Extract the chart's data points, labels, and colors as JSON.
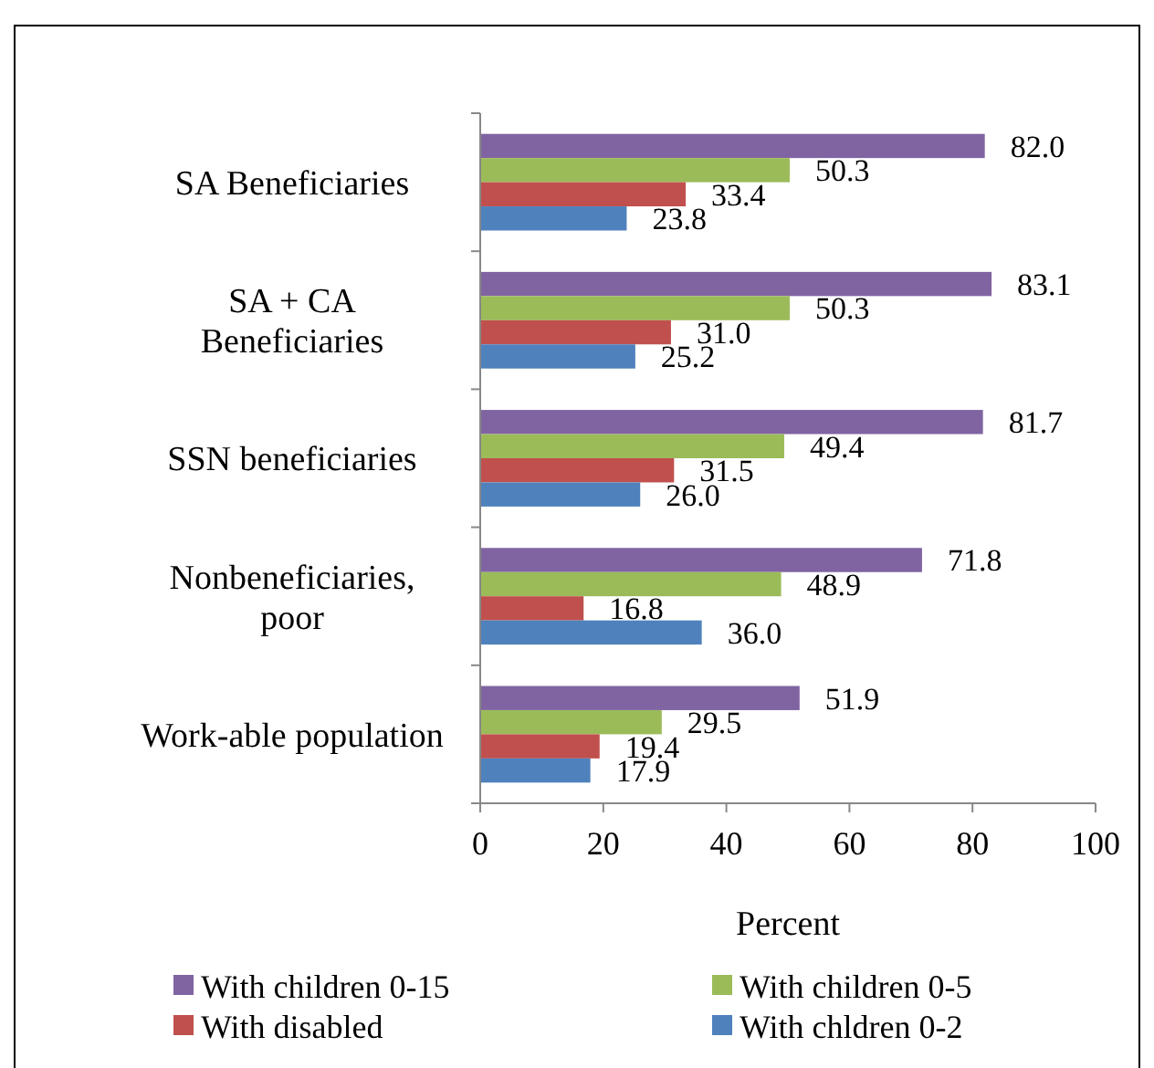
{
  "chart_data": {
    "type": "bar",
    "orientation": "horizontal",
    "xlabel": "Percent",
    "categories": [
      "SA Beneficiaries",
      "SA + CA Beneficiaries",
      "SSN beneficiaries",
      "Nonbeneficiaries, poor",
      "Work-able population"
    ],
    "series": [
      {
        "name": "With children 0-15",
        "color": "#8064a2",
        "values": [
          82.0,
          83.1,
          81.7,
          71.8,
          51.9
        ],
        "value_labels": [
          "82.0",
          "83.1",
          "81.7",
          "71.8",
          "51.9"
        ]
      },
      {
        "name": "With children 0-5",
        "color": "#9bbb59",
        "values": [
          50.3,
          50.3,
          49.4,
          48.9,
          29.5
        ],
        "value_labels": [
          "50.3",
          "50.3",
          "49.4",
          "48.9",
          "29.5"
        ]
      },
      {
        "name": "With disabled",
        "color": "#c0504d",
        "values": [
          33.4,
          31.0,
          31.5,
          16.8,
          19.4
        ],
        "value_labels": [
          "33.4",
          "31.0",
          "31.5",
          "16.8",
          "19.4"
        ]
      },
      {
        "name": "With chldren 0-2",
        "color": "#4f81bd",
        "values": [
          23.8,
          25.2,
          26.0,
          36.0,
          17.9
        ],
        "value_labels": [
          "23.8",
          "25.2",
          "26.0",
          "36.0",
          "17.9"
        ]
      }
    ],
    "xlim": [
      0,
      100
    ],
    "xticks": [
      0,
      20,
      40,
      60,
      80,
      100
    ],
    "grid": false,
    "legend": "bottom"
  }
}
